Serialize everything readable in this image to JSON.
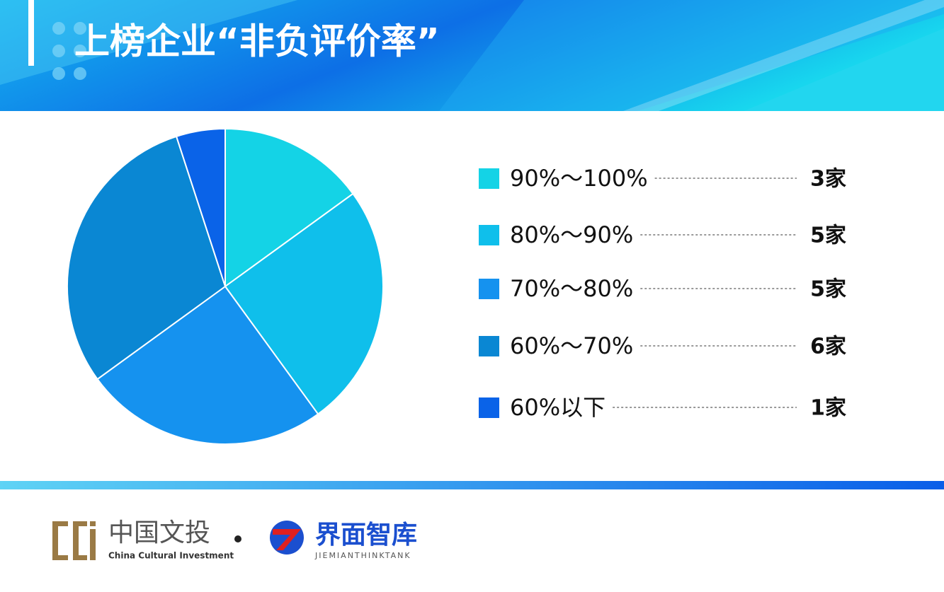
{
  "chart_data": {
    "type": "pie",
    "title": "上榜企业“非负评价率”",
    "categories": [
      "90%～100%",
      "80%～90%",
      "70%～80%",
      "60%～70%",
      "60%以下"
    ],
    "values": [
      3,
      5,
      5,
      6,
      1
    ],
    "value_labels": [
      "3家",
      "5家",
      "5家",
      "6家",
      "1家"
    ],
    "colors": [
      "#14d3e6",
      "#0fbfeb",
      "#1592ef",
      "#0a87d3",
      "#0a63e8"
    ]
  },
  "footer": {
    "brand1": "中国文投",
    "brand1_en": "China Cultural Investment",
    "brand2": "界面智库",
    "brand2_en": "JIEMIANTHINKTANK"
  }
}
